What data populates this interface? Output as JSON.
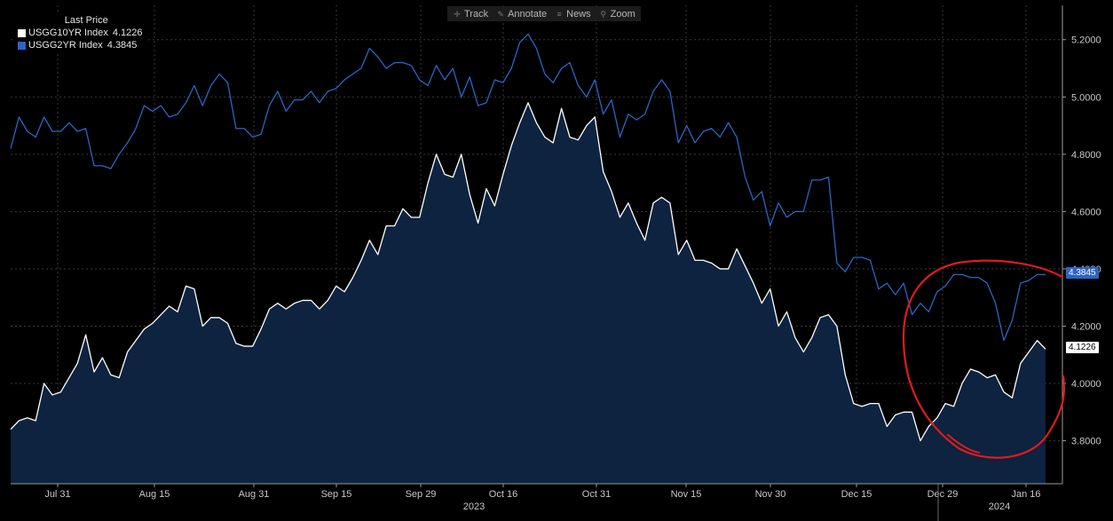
{
  "toolbar": {
    "items": [
      {
        "label": "Track",
        "icon": "crosshair-icon"
      },
      {
        "label": "Annotate",
        "icon": "pencil-icon"
      },
      {
        "label": "News",
        "icon": "news-icon"
      },
      {
        "label": "Zoom",
        "icon": "magnifier-icon"
      }
    ]
  },
  "legend": {
    "title": "Last Price"
  },
  "chart_data": {
    "type": "area",
    "x_tick_labels": [
      "Jul 31",
      "Aug 15",
      "Aug 31",
      "Sep 15",
      "Sep 29",
      "Oct 16",
      "Oct 31",
      "Nov 15",
      "Nov 30",
      "Dec 15",
      "Dec 29",
      "Jan 16"
    ],
    "x_year_labels": [
      "2023",
      "2024"
    ],
    "y_tick_labels": [
      "3.8000",
      "4.0000",
      "4.2000",
      "4.4000",
      "4.6000",
      "4.8000",
      "5.0000",
      "5.2000"
    ],
    "ylim": [
      3.65,
      5.32
    ],
    "grid": true,
    "legend_position": "top-left",
    "series": [
      {
        "name": "USGG10YR Index",
        "last_value": "4.1226",
        "color": "#ffffff",
        "fill": "#0d2340",
        "values": [
          3.84,
          3.87,
          3.88,
          3.87,
          4.0,
          3.96,
          3.97,
          4.02,
          4.07,
          4.17,
          4.04,
          4.09,
          4.03,
          4.02,
          4.11,
          4.15,
          4.19,
          4.21,
          4.24,
          4.27,
          4.25,
          4.34,
          4.33,
          4.2,
          4.23,
          4.23,
          4.21,
          4.14,
          4.13,
          4.13,
          4.19,
          4.26,
          4.28,
          4.26,
          4.28,
          4.29,
          4.29,
          4.26,
          4.29,
          4.34,
          4.32,
          4.37,
          4.43,
          4.5,
          4.45,
          4.55,
          4.55,
          4.61,
          4.58,
          4.58,
          4.7,
          4.8,
          4.73,
          4.72,
          4.8,
          4.66,
          4.56,
          4.68,
          4.62,
          4.73,
          4.83,
          4.91,
          4.98,
          4.91,
          4.86,
          4.84,
          4.96,
          4.86,
          4.85,
          4.9,
          4.93,
          4.74,
          4.67,
          4.58,
          4.63,
          4.56,
          4.5,
          4.63,
          4.65,
          4.63,
          4.45,
          4.5,
          4.43,
          4.43,
          4.42,
          4.4,
          4.4,
          4.47,
          4.41,
          4.35,
          4.28,
          4.33,
          4.2,
          4.25,
          4.16,
          4.11,
          4.16,
          4.23,
          4.24,
          4.2,
          4.03,
          3.93,
          3.92,
          3.93,
          3.93,
          3.85,
          3.89,
          3.9,
          3.9,
          3.8,
          3.85,
          3.88,
          3.93,
          3.92,
          4.0,
          4.05,
          4.04,
          4.02,
          4.03,
          3.97,
          3.95,
          4.07,
          4.11,
          4.15,
          4.12
        ]
      },
      {
        "name": "USGG2YR Index",
        "last_value": "4.3845",
        "color": "#2b65c4",
        "values": [
          4.82,
          4.93,
          4.88,
          4.86,
          4.93,
          4.88,
          4.88,
          4.91,
          4.88,
          4.89,
          4.76,
          4.76,
          4.75,
          4.8,
          4.84,
          4.89,
          4.97,
          4.95,
          4.97,
          4.93,
          4.94,
          4.98,
          5.04,
          4.97,
          5.04,
          5.08,
          5.05,
          4.89,
          4.89,
          4.86,
          4.87,
          4.97,
          5.02,
          4.95,
          4.99,
          4.99,
          5.02,
          4.98,
          5.02,
          5.03,
          5.06,
          5.08,
          5.1,
          5.17,
          5.14,
          5.1,
          5.12,
          5.12,
          5.11,
          5.06,
          5.04,
          5.11,
          5.06,
          5.1,
          5.0,
          5.07,
          4.97,
          4.98,
          5.06,
          5.05,
          5.1,
          5.19,
          5.22,
          5.17,
          5.08,
          5.05,
          5.1,
          5.12,
          5.04,
          5.0,
          5.06,
          4.94,
          4.99,
          4.86,
          4.94,
          4.92,
          4.94,
          5.02,
          5.06,
          5.02,
          4.84,
          4.9,
          4.84,
          4.88,
          4.89,
          4.86,
          4.91,
          4.86,
          4.72,
          4.64,
          4.67,
          4.55,
          4.63,
          4.58,
          4.6,
          4.6,
          4.71,
          4.71,
          4.72,
          4.42,
          4.39,
          4.44,
          4.44,
          4.43,
          4.33,
          4.35,
          4.31,
          4.35,
          4.24,
          4.28,
          4.25,
          4.32,
          4.34,
          4.38,
          4.38,
          4.37,
          4.37,
          4.35,
          4.28,
          4.15,
          4.22,
          4.35,
          4.36,
          4.38,
          4.38
        ]
      }
    ]
  }
}
